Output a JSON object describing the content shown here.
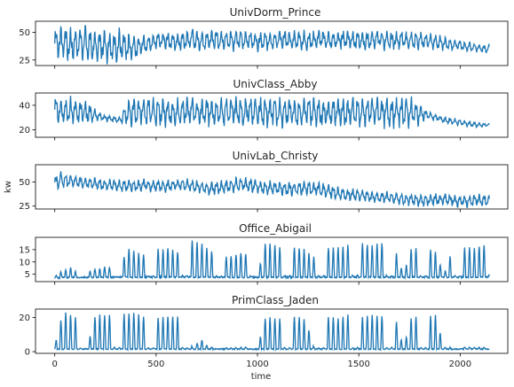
{
  "figure": {
    "xlabel": "time",
    "ylabel": "kw",
    "line_color": "#1f77b4",
    "xlim": [
      -95,
      2235
    ],
    "x_ticks": [
      0,
      500,
      1000,
      1500,
      2000
    ],
    "x_tick_labels": [
      "0",
      "500",
      "1000",
      "1500",
      "2000"
    ]
  },
  "chart_data": [
    {
      "type": "line",
      "title": "UnivDorm_Prince",
      "ylim": [
        20,
        60
      ],
      "y_ticks": [
        25,
        50
      ],
      "y_tick_labels": [
        "25",
        "50"
      ],
      "series": [
        {
          "x": [
            0,
            40,
            80,
            120,
            160,
            200,
            240,
            280,
            320,
            360,
            400,
            440,
            480,
            520,
            560,
            600,
            640,
            680,
            720,
            760,
            800,
            840,
            880,
            920,
            960,
            1000,
            1040,
            1080,
            1120,
            1160,
            1200,
            1240,
            1280,
            1320,
            1360,
            1400,
            1440,
            1480,
            1520,
            1560,
            1600,
            1640,
            1680,
            1720,
            1760,
            1800,
            1840,
            1880,
            1920,
            1960,
            2000,
            2040,
            2080,
            2120,
            2145
          ],
          "values": [
            40,
            42,
            38,
            41,
            39,
            37,
            40,
            36,
            38,
            35,
            37,
            39,
            41,
            43,
            42,
            41,
            43,
            44,
            42,
            43,
            44,
            42,
            43,
            44,
            43,
            41,
            42,
            43,
            44,
            42,
            43,
            42,
            43,
            44,
            42,
            43,
            44,
            43,
            42,
            43,
            44,
            42,
            43,
            43,
            42,
            43,
            42,
            41,
            40,
            39,
            38,
            37,
            36,
            35,
            35
          ],
          "amplitude": [
            14,
            13,
            14,
            12,
            13,
            12,
            13,
            12,
            12,
            11,
            9,
            7,
            6,
            6,
            7,
            8,
            8,
            8,
            7,
            8,
            8,
            8,
            8,
            8,
            7,
            7,
            7,
            7,
            7,
            7,
            8,
            7,
            7,
            7,
            7,
            7,
            7,
            7,
            7,
            7,
            7,
            7,
            7,
            7,
            7,
            7,
            6,
            6,
            5,
            4,
            4,
            4,
            3,
            3,
            3
          ]
        }
      ]
    },
    {
      "type": "line",
      "title": "UnivClass_Abby",
      "ylim": [
        14,
        50
      ],
      "y_ticks": [
        20,
        40
      ],
      "y_tick_labels": [
        "20",
        "40"
      ],
      "series": [
        {
          "x": [
            0,
            40,
            80,
            120,
            160,
            200,
            240,
            280,
            320,
            360,
            400,
            440,
            480,
            520,
            560,
            600,
            640,
            680,
            720,
            760,
            800,
            840,
            880,
            920,
            960,
            1000,
            1040,
            1080,
            1120,
            1160,
            1200,
            1240,
            1280,
            1320,
            1360,
            1400,
            1440,
            1480,
            1520,
            1560,
            1600,
            1640,
            1680,
            1720,
            1760,
            1800,
            1840,
            1880,
            1920,
            1960,
            2000,
            2040,
            2080,
            2120,
            2145
          ],
          "values": [
            36,
            35,
            36,
            35,
            34,
            32,
            30,
            29,
            28,
            34,
            35,
            35,
            35,
            35,
            34,
            34,
            35,
            35,
            34,
            35,
            34,
            35,
            35,
            34,
            35,
            35,
            34,
            35,
            34,
            35,
            34,
            35,
            35,
            34,
            34,
            35,
            34,
            35,
            34,
            35,
            35,
            34,
            34,
            35,
            34,
            33,
            32,
            30,
            28,
            27,
            26,
            25,
            24,
            24,
            24
          ],
          "amplitude": [
            9,
            9,
            9,
            9,
            8,
            4,
            2,
            2,
            2,
            9,
            10,
            10,
            10,
            10,
            9,
            9,
            10,
            10,
            9,
            10,
            9,
            10,
            10,
            10,
            10,
            10,
            10,
            10,
            10,
            10,
            10,
            10,
            10,
            10,
            10,
            10,
            10,
            10,
            10,
            10,
            10,
            10,
            10,
            10,
            10,
            7,
            3,
            2,
            2,
            2,
            2,
            2,
            2,
            1,
            1
          ]
        }
      ]
    },
    {
      "type": "line",
      "title": "UnivLab_Christy",
      "ylim": [
        22,
        68
      ],
      "y_ticks": [
        25,
        50
      ],
      "y_tick_labels": [
        "25",
        "50"
      ],
      "series": [
        {
          "x": [
            0,
            40,
            80,
            120,
            160,
            200,
            240,
            280,
            320,
            360,
            400,
            440,
            480,
            520,
            560,
            600,
            640,
            680,
            720,
            760,
            800,
            840,
            880,
            920,
            960,
            1000,
            1040,
            1080,
            1120,
            1160,
            1200,
            1240,
            1280,
            1320,
            1360,
            1400,
            1440,
            1480,
            1520,
            1560,
            1600,
            1640,
            1680,
            1720,
            1760,
            1800,
            1840,
            1880,
            1920,
            1960,
            2000,
            2040,
            2080,
            2120,
            2145
          ],
          "values": [
            50,
            52,
            51,
            50,
            49,
            48,
            47,
            47,
            46,
            46,
            46,
            47,
            46,
            46,
            46,
            47,
            47,
            46,
            45,
            43,
            44,
            45,
            46,
            48,
            46,
            45,
            44,
            44,
            43,
            43,
            43,
            44,
            43,
            42,
            40,
            38,
            37,
            36,
            36,
            35,
            34,
            34,
            33,
            32,
            32,
            31,
            31,
            32,
            32,
            31,
            30,
            30,
            31,
            31,
            30
          ],
          "amplitude": [
            6,
            8,
            6,
            5,
            5,
            5,
            5,
            5,
            5,
            5,
            5,
            5,
            5,
            5,
            5,
            5,
            5,
            5,
            5,
            5,
            6,
            6,
            6,
            6,
            6,
            6,
            6,
            6,
            6,
            6,
            6,
            6,
            6,
            6,
            6,
            6,
            6,
            5,
            5,
            5,
            5,
            5,
            5,
            5,
            5,
            5,
            5,
            5,
            5,
            5,
            5,
            5,
            5,
            5,
            5
          ]
        }
      ]
    },
    {
      "type": "line",
      "title": "Office_Abigail",
      "ylim": [
        2,
        20
      ],
      "y_ticks": [
        5,
        10,
        15
      ],
      "y_tick_labels": [
        "5",
        "10",
        "15"
      ],
      "series": [
        {
          "x": [
            0,
            40,
            80,
            120,
            160,
            200,
            240,
            280,
            320,
            360,
            400,
            440,
            480,
            520,
            560,
            600,
            640,
            680,
            720,
            760,
            800,
            840,
            880,
            920,
            960,
            1000,
            1040,
            1080,
            1120,
            1160,
            1200,
            1240,
            1280,
            1320,
            1360,
            1400,
            1440,
            1480,
            1520,
            1560,
            1600,
            1640,
            1680,
            1720,
            1760,
            1800,
            1840,
            1880,
            1920,
            1960,
            2000,
            2040,
            2080,
            2120,
            2145
          ],
          "base": [
            3.5,
            3.6,
            3.7,
            3.7,
            3.8,
            3.8,
            3.8,
            3.8,
            3.8,
            3.8,
            3.8,
            3.8,
            3.8,
            3.8,
            3.8,
            3.8,
            3.8,
            3.8,
            3.8,
            3.8,
            3.8,
            3.8,
            3.8,
            3.8,
            3.8,
            3.8,
            3.8,
            3.8,
            3.8,
            3.8,
            3.8,
            3.8,
            3.8,
            3.8,
            3.8,
            3.8,
            3.8,
            3.8,
            3.8,
            3.8,
            3.8,
            3.8,
            3.8,
            3.8,
            3.8,
            3.8,
            3.8,
            3.8,
            3.8,
            3.8,
            3.8,
            3.8,
            3.8,
            3.8,
            3.8
          ],
          "peak": [
            0.5,
            3,
            4,
            1,
            2,
            3,
            4,
            4,
            4,
            12,
            10,
            9,
            12,
            11,
            12,
            10,
            12,
            15,
            14,
            11,
            10,
            8,
            9,
            10,
            9,
            1,
            14,
            13,
            12,
            12,
            12,
            11,
            8,
            12,
            12,
            12,
            13,
            14,
            14,
            13,
            14,
            14,
            11,
            1,
            12,
            12,
            12,
            10,
            1,
            11,
            12,
            12,
            12,
            13,
            13
          ]
        }
      ]
    },
    {
      "type": "line",
      "title": "PrimClass_Jaden",
      "ylim": [
        -1,
        25
      ],
      "y_ticks": [
        0,
        20
      ],
      "y_tick_labels": [
        "0",
        "20"
      ],
      "series": [
        {
          "x": [
            0,
            40,
            80,
            120,
            160,
            200,
            240,
            280,
            320,
            360,
            400,
            440,
            480,
            520,
            560,
            600,
            640,
            680,
            720,
            760,
            800,
            840,
            880,
            920,
            960,
            1000,
            1040,
            1080,
            1120,
            1160,
            1200,
            1240,
            1280,
            1320,
            1360,
            1400,
            1440,
            1480,
            1520,
            1560,
            1600,
            1640,
            1680,
            1720,
            1760,
            1800,
            1840,
            1880,
            1920,
            1960,
            2000,
            2040,
            2080,
            2120,
            2145
          ],
          "base": [
            1.5,
            1.5,
            1.5,
            1.5,
            1.5,
            1.5,
            1.5,
            1.5,
            1.5,
            1.5,
            1.5,
            1.5,
            1.5,
            1.5,
            1.5,
            1.5,
            1.5,
            1.5,
            1.5,
            1.5,
            1.5,
            1.5,
            1.5,
            1.5,
            1.5,
            1.5,
            1.5,
            1.5,
            1.5,
            1.5,
            1.5,
            1.5,
            1.5,
            1.5,
            1.5,
            1.5,
            1.5,
            1.5,
            1.5,
            1.5,
            1.5,
            1.5,
            1.5,
            1.5,
            1.5,
            1.5,
            1.5,
            1.5,
            1.5,
            1.5,
            1.5,
            1.5,
            1.5,
            1.5,
            1.5
          ],
          "peak": [
            2,
            22,
            20,
            18,
            0.5,
            20,
            20,
            20,
            20,
            21,
            21,
            19,
            17,
            19,
            19,
            19,
            18,
            0.5,
            6,
            1,
            1,
            1,
            1,
            1,
            1,
            1,
            19,
            18,
            18,
            19,
            19,
            17,
            0.5,
            19,
            19,
            18,
            20,
            20,
            19,
            20,
            19,
            20,
            19,
            0.5,
            19,
            19,
            19,
            20,
            1,
            1,
            1,
            1,
            1,
            1,
            1
          ]
        }
      ]
    }
  ]
}
